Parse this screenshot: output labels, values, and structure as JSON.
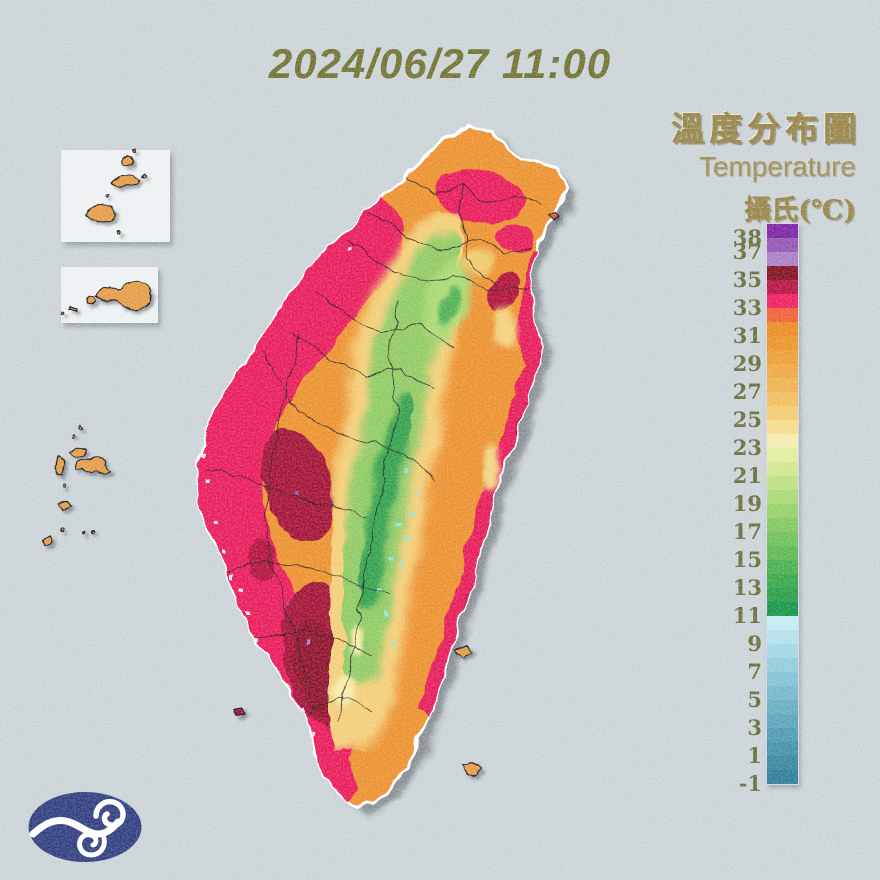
{
  "title": {
    "datetime": "2024/06/27 11:00"
  },
  "legend": {
    "title_zh": "溫度分布圖",
    "title_en": "Temperature",
    "unit_label": "攝氏(℃)",
    "tick_labels": [
      "38",
      "37",
      "35",
      "33",
      "31",
      "29",
      "27",
      "25",
      "23",
      "21",
      "19",
      "17",
      "15",
      "13",
      "11",
      "9",
      "7",
      "5",
      "3",
      "1",
      "-1"
    ],
    "band_step_degc": 1,
    "band_colors_top_to_bottom": [
      "#7a1fa2",
      "#8f52b1",
      "#a77cc2",
      "#7d0c1d",
      "#b60e3e",
      "#ee1a5a",
      "#f05c33",
      "#e8891b",
      "#ea9224",
      "#ec9c30",
      "#eda63e",
      "#efb04c",
      "#f1bd5c",
      "#f3cb6e",
      "#f5dc88",
      "#f4ebac",
      "#e3ec9e",
      "#cfe68e",
      "#bbdf7f",
      "#a7d771",
      "#93cf64",
      "#80c65b",
      "#6dbe55",
      "#5ab650",
      "#47ad4b",
      "#35a447",
      "#249c45",
      "#129344",
      "#c2ebf3",
      "#b0e0ec",
      "#a0d5e4",
      "#90cadb",
      "#81c0d3",
      "#73b6ca",
      "#65acc1",
      "#58a2b8",
      "#4b98af",
      "#3f8ea6",
      "#33849d",
      "#287a94"
    ]
  },
  "map": {
    "palette": {
      "background": "#c9d2d6",
      "base_orange": "#ec8f2c",
      "west_plain_crimson": "#e81656",
      "hot_maroon": "#a10d33",
      "mountain_yellow": "#f3cd74",
      "mountain_green": "#8cc95f",
      "high_mountain_green": "#2f9e48",
      "coolest_cyan": "#8fe0dc",
      "offshore_island_orange": "#e49a42",
      "inset_box_bg": "#edf0f2",
      "logo_blue": "#2b3a7d"
    }
  },
  "logo": {
    "name": "central-weather-administration-logo"
  }
}
